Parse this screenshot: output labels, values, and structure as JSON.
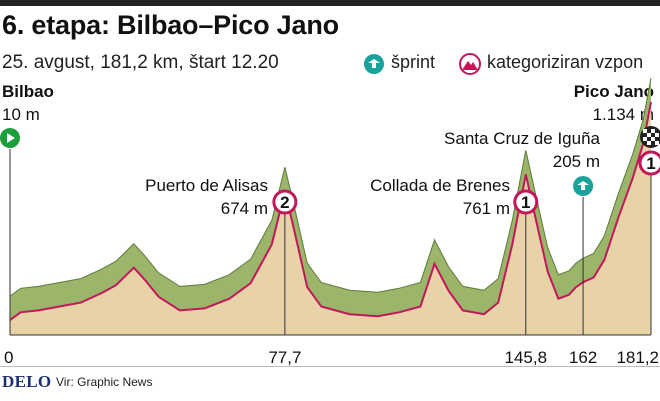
{
  "header": {
    "title": "6. etapa: Bilbao–Pico Jano",
    "subtitle": "25. avgust, 181,2 km, štart 12.20"
  },
  "legend": {
    "sprint_label": "šprint",
    "climb_label": "kategoriziran vzpon"
  },
  "footer": {
    "brand": "DELO",
    "source": "Vir: Graphic News"
  },
  "colors": {
    "sprint": "#1aa39a",
    "climb": "#c2185b",
    "start": "#1e9e3a",
    "terrain": "#e8d3a8",
    "terrain_top": "#9bb56a"
  },
  "chart_data": {
    "type": "area",
    "x_unit": "km",
    "y_unit": "m",
    "xlim": [
      0,
      181.2
    ],
    "ylim": [
      0,
      1134
    ],
    "x_ticks": [
      "0",
      "77,7",
      "145,8",
      "162",
      "181,2"
    ],
    "x_tick_values": [
      0,
      77.7,
      145.8,
      162,
      181.2
    ],
    "profile": [
      [
        0,
        10
      ],
      [
        3,
        50
      ],
      [
        8,
        60
      ],
      [
        14,
        80
      ],
      [
        20,
        100
      ],
      [
        26,
        150
      ],
      [
        30,
        190
      ],
      [
        35,
        280
      ],
      [
        38,
        220
      ],
      [
        42,
        130
      ],
      [
        48,
        60
      ],
      [
        55,
        70
      ],
      [
        62,
        120
      ],
      [
        68,
        200
      ],
      [
        74,
        400
      ],
      [
        77.7,
        674
      ],
      [
        80,
        500
      ],
      [
        84,
        180
      ],
      [
        88,
        80
      ],
      [
        96,
        40
      ],
      [
        104,
        30
      ],
      [
        110,
        50
      ],
      [
        116,
        80
      ],
      [
        120,
        300
      ],
      [
        124,
        160
      ],
      [
        128,
        60
      ],
      [
        134,
        40
      ],
      [
        138,
        100
      ],
      [
        142,
        400
      ],
      [
        145.8,
        761
      ],
      [
        149,
        500
      ],
      [
        152,
        260
      ],
      [
        155,
        120
      ],
      [
        158,
        140
      ],
      [
        160,
        180
      ],
      [
        162,
        205
      ],
      [
        165,
        230
      ],
      [
        168,
        320
      ],
      [
        172,
        540
      ],
      [
        176,
        740
      ],
      [
        179,
        920
      ],
      [
        181.2,
        1134
      ]
    ],
    "places": [
      {
        "name": "Bilbao",
        "elevation": "10 m",
        "km": 0,
        "type": "start"
      },
      {
        "name": "Puerto de Alisas",
        "elevation": "674 m",
        "km": 77.7,
        "type": "climb",
        "category": "2"
      },
      {
        "name": "Collada de Brenes",
        "elevation": "761 m",
        "km": 145.8,
        "type": "climb",
        "category": "1"
      },
      {
        "name": "Santa Cruz de Iguña",
        "elevation": "205 m",
        "km": 162,
        "type": "sprint"
      },
      {
        "name": "Pico Jano",
        "elevation": "1.134 m",
        "km": 181.2,
        "type": "finish",
        "category": "1"
      }
    ]
  }
}
